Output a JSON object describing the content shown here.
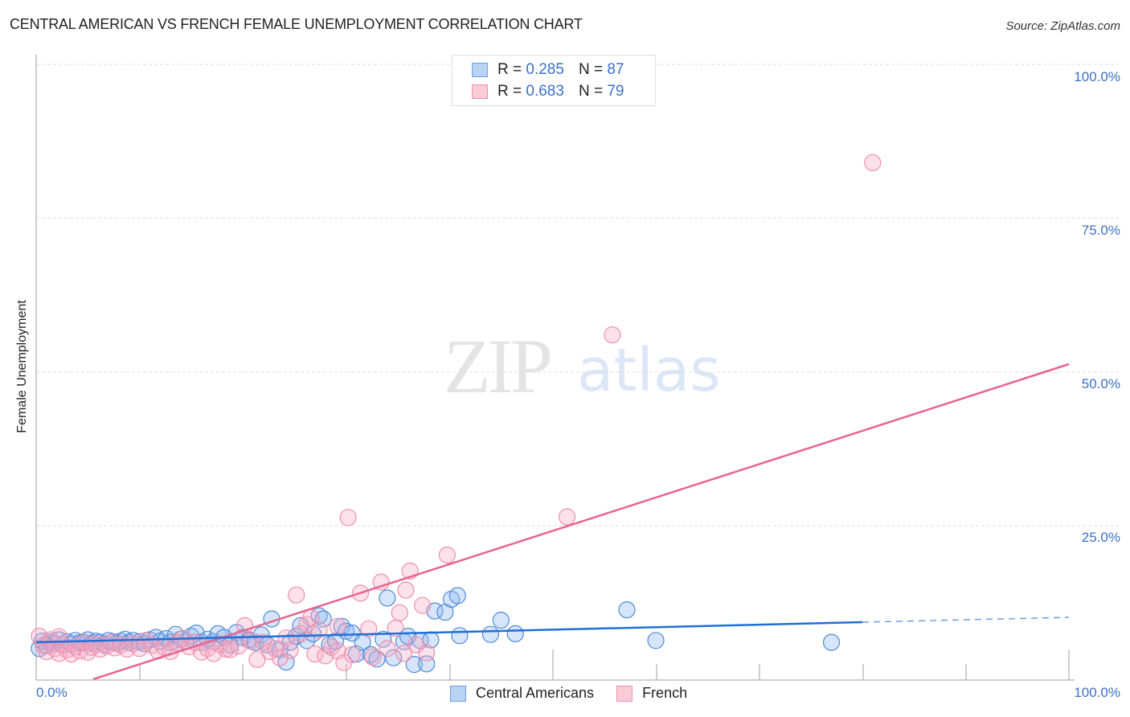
{
  "header": {
    "title": "CENTRAL AMERICAN VS FRENCH FEMALE UNEMPLOYMENT CORRELATION CHART",
    "source": "Source: ZipAtlas.com"
  },
  "watermark": {
    "zip": "ZIP",
    "atlas": "atlas"
  },
  "legend": {
    "rows": [
      {
        "r_label": "R = ",
        "r_value": "0.285",
        "n_label": "N = ",
        "n_value": "87",
        "color": "#a9c8f0",
        "border": "#6e9fde"
      },
      {
        "r_label": "R = ",
        "r_value": "0.683",
        "n_label": "N = ",
        "n_value": "79",
        "color": "#f8c3d2",
        "border": "#ee8fac"
      }
    ]
  },
  "bottom_legend": {
    "items": [
      {
        "label": "Central Americans",
        "color": "#a9c8f0",
        "border": "#6e9fde"
      },
      {
        "label": "French",
        "color": "#f8c3d2",
        "border": "#ee8fac"
      }
    ]
  },
  "axes": {
    "ylabel": "Female Unemployment",
    "yticks": [
      "100.0%",
      "75.0%",
      "50.0%",
      "25.0%"
    ],
    "xticks": [
      "0.0%",
      "100.0%"
    ]
  },
  "colors": {
    "blue_line": "#1f6fd6",
    "pink_line": "#e8648e",
    "blue_fill": "rgba(147,186,238,0.38)",
    "blue_stroke": "#4f8ad8",
    "pink_fill": "rgba(246,170,194,0.35)",
    "pink_stroke": "#ee8fac",
    "tick_label": "#3a70c8"
  },
  "chart_data": {
    "type": "scatter",
    "title": "CENTRAL AMERICAN VS FRENCH FEMALE UNEMPLOYMENT CORRELATION CHART",
    "xlabel": "",
    "ylabel": "Female Unemployment",
    "xlim": [
      0,
      100
    ],
    "ylim": [
      0,
      100
    ],
    "x_tick_labels": [
      "0.0%",
      "100.0%"
    ],
    "y_tick_labels": [
      "25.0%",
      "50.0%",
      "75.0%",
      "100.0%"
    ],
    "grid": {
      "horizontal": true,
      "style": "dashed"
    },
    "legend_position": "top-center and bottom",
    "series": [
      {
        "name": "Central Americans",
        "R": 0.285,
        "N": 87,
        "color": "#6e9fde",
        "trendline": {
          "x": [
            0,
            80,
            100
          ],
          "y": [
            6.0,
            9.2,
            10.0
          ],
          "dashed_after_x": 80
        },
        "points": [
          [
            0.3,
            5.0
          ],
          [
            0.6,
            6.2
          ],
          [
            1.0,
            5.5
          ],
          [
            1.4,
            6.0
          ],
          [
            1.8,
            5.8
          ],
          [
            2.2,
            6.4
          ],
          [
            2.6,
            5.6
          ],
          [
            3.0,
            6.1
          ],
          [
            3.4,
            5.7
          ],
          [
            3.8,
            6.3
          ],
          [
            4.2,
            5.9
          ],
          [
            4.6,
            6.0
          ],
          [
            5.0,
            6.4
          ],
          [
            5.4,
            5.8
          ],
          [
            5.8,
            6.2
          ],
          [
            6.2,
            6.0
          ],
          [
            6.6,
            5.7
          ],
          [
            7.0,
            6.3
          ],
          [
            7.4,
            6.1
          ],
          [
            7.8,
            5.9
          ],
          [
            8.2,
            6.2
          ],
          [
            8.6,
            6.5
          ],
          [
            9.0,
            6.0
          ],
          [
            9.4,
            6.3
          ],
          [
            10.0,
            6.1
          ],
          [
            10.5,
            5.8
          ],
          [
            11.0,
            6.4
          ],
          [
            11.6,
            6.8
          ],
          [
            12.0,
            6.2
          ],
          [
            12.6,
            6.6
          ],
          [
            13.0,
            6.0
          ],
          [
            13.5,
            7.3
          ],
          [
            14.0,
            6.5
          ],
          [
            14.5,
            6.2
          ],
          [
            15.0,
            7.0
          ],
          [
            15.5,
            7.5
          ],
          [
            16.0,
            6.0
          ],
          [
            16.6,
            6.5
          ],
          [
            17.2,
            6.1
          ],
          [
            17.6,
            7.4
          ],
          [
            18.2,
            6.8
          ],
          [
            18.8,
            5.6
          ],
          [
            19.4,
            7.6
          ],
          [
            20.0,
            6.8
          ],
          [
            20.6,
            6.4
          ],
          [
            21.2,
            6.0
          ],
          [
            21.8,
            7.2
          ],
          [
            22.4,
            5.6
          ],
          [
            22.8,
            9.8
          ],
          [
            23.6,
            4.8
          ],
          [
            24.2,
            2.8
          ],
          [
            24.6,
            6.0
          ],
          [
            25.2,
            7.0
          ],
          [
            25.6,
            8.7
          ],
          [
            26.2,
            6.3
          ],
          [
            26.8,
            7.4
          ],
          [
            27.4,
            10.3
          ],
          [
            27.8,
            9.8
          ],
          [
            28.4,
            5.6
          ],
          [
            29.0,
            6.2
          ],
          [
            29.6,
            8.6
          ],
          [
            30.0,
            7.8
          ],
          [
            30.6,
            7.5
          ],
          [
            31.0,
            4.1
          ],
          [
            31.6,
            6.0
          ],
          [
            32.4,
            4.0
          ],
          [
            33.0,
            3.3
          ],
          [
            33.6,
            6.5
          ],
          [
            34.0,
            13.2
          ],
          [
            34.6,
            3.5
          ],
          [
            35.6,
            6.1
          ],
          [
            36.6,
            2.4
          ],
          [
            37.2,
            6.3
          ],
          [
            37.8,
            2.5
          ],
          [
            38.2,
            6.4
          ],
          [
            38.6,
            11.1
          ],
          [
            39.6,
            10.9
          ],
          [
            40.2,
            13.0
          ],
          [
            40.8,
            13.6
          ],
          [
            41.0,
            7.1
          ],
          [
            45.0,
            9.6
          ],
          [
            46.4,
            7.4
          ],
          [
            57.2,
            11.3
          ],
          [
            60.0,
            6.3
          ],
          [
            77.0,
            6.0
          ],
          [
            44.0,
            7.3
          ],
          [
            36.0,
            7.0
          ]
        ]
      },
      {
        "name": "French",
        "R": 0.683,
        "N": 79,
        "color": "#ee8fac",
        "trendline": {
          "x": [
            5.5,
            100
          ],
          "y": [
            0,
            51.2
          ]
        },
        "points": [
          [
            0.3,
            7.0
          ],
          [
            0.7,
            5.5
          ],
          [
            1.0,
            4.5
          ],
          [
            1.4,
            6.4
          ],
          [
            1.8,
            5.0
          ],
          [
            2.2,
            4.2
          ],
          [
            2.6,
            5.6
          ],
          [
            3.0,
            4.8
          ],
          [
            3.4,
            4.1
          ],
          [
            3.8,
            5.3
          ],
          [
            4.2,
            4.6
          ],
          [
            4.6,
            5.9
          ],
          [
            5.0,
            4.4
          ],
          [
            5.4,
            5.2
          ],
          [
            5.8,
            5.7
          ],
          [
            6.2,
            4.9
          ],
          [
            6.8,
            5.4
          ],
          [
            7.2,
            6.0
          ],
          [
            7.6,
            5.1
          ],
          [
            8.2,
            5.6
          ],
          [
            8.8,
            4.9
          ],
          [
            9.4,
            5.8
          ],
          [
            10.0,
            5.0
          ],
          [
            10.6,
            6.3
          ],
          [
            11.2,
            5.5
          ],
          [
            11.8,
            4.6
          ],
          [
            12.4,
            5.2
          ],
          [
            13.0,
            4.5
          ],
          [
            13.6,
            5.9
          ],
          [
            14.2,
            6.6
          ],
          [
            14.8,
            5.3
          ],
          [
            15.4,
            6.0
          ],
          [
            16.0,
            4.4
          ],
          [
            16.6,
            5.0
          ],
          [
            17.2,
            4.2
          ],
          [
            17.8,
            5.7
          ],
          [
            18.4,
            4.9
          ],
          [
            18.8,
            4.8
          ],
          [
            19.6,
            5.4
          ],
          [
            20.2,
            8.7
          ],
          [
            20.8,
            6.2
          ],
          [
            21.4,
            3.2
          ],
          [
            22.0,
            6.0
          ],
          [
            22.6,
            4.5
          ],
          [
            23.2,
            5.0
          ],
          [
            23.6,
            3.5
          ],
          [
            24.2,
            6.7
          ],
          [
            24.6,
            4.7
          ],
          [
            25.2,
            13.7
          ],
          [
            25.6,
            7.4
          ],
          [
            26.2,
            8.9
          ],
          [
            26.6,
            10.0
          ],
          [
            27.0,
            4.1
          ],
          [
            27.4,
            8.0
          ],
          [
            28.0,
            3.8
          ],
          [
            28.6,
            5.2
          ],
          [
            29.2,
            4.6
          ],
          [
            29.8,
            2.7
          ],
          [
            30.2,
            26.3
          ],
          [
            30.6,
            4.0
          ],
          [
            31.4,
            14.0
          ],
          [
            32.2,
            8.2
          ],
          [
            32.6,
            3.6
          ],
          [
            33.4,
            15.8
          ],
          [
            34.0,
            5.0
          ],
          [
            34.8,
            8.3
          ],
          [
            35.2,
            10.8
          ],
          [
            35.8,
            14.5
          ],
          [
            36.2,
            17.6
          ],
          [
            36.8,
            5.6
          ],
          [
            37.4,
            12.0
          ],
          [
            37.8,
            4.3
          ],
          [
            39.8,
            20.2
          ],
          [
            29.2,
            8.6
          ],
          [
            51.4,
            26.4
          ],
          [
            55.8,
            56.0
          ],
          [
            81.0,
            84.0
          ],
          [
            2.2,
            6.9
          ],
          [
            35.6,
            4.2
          ]
        ]
      }
    ]
  }
}
